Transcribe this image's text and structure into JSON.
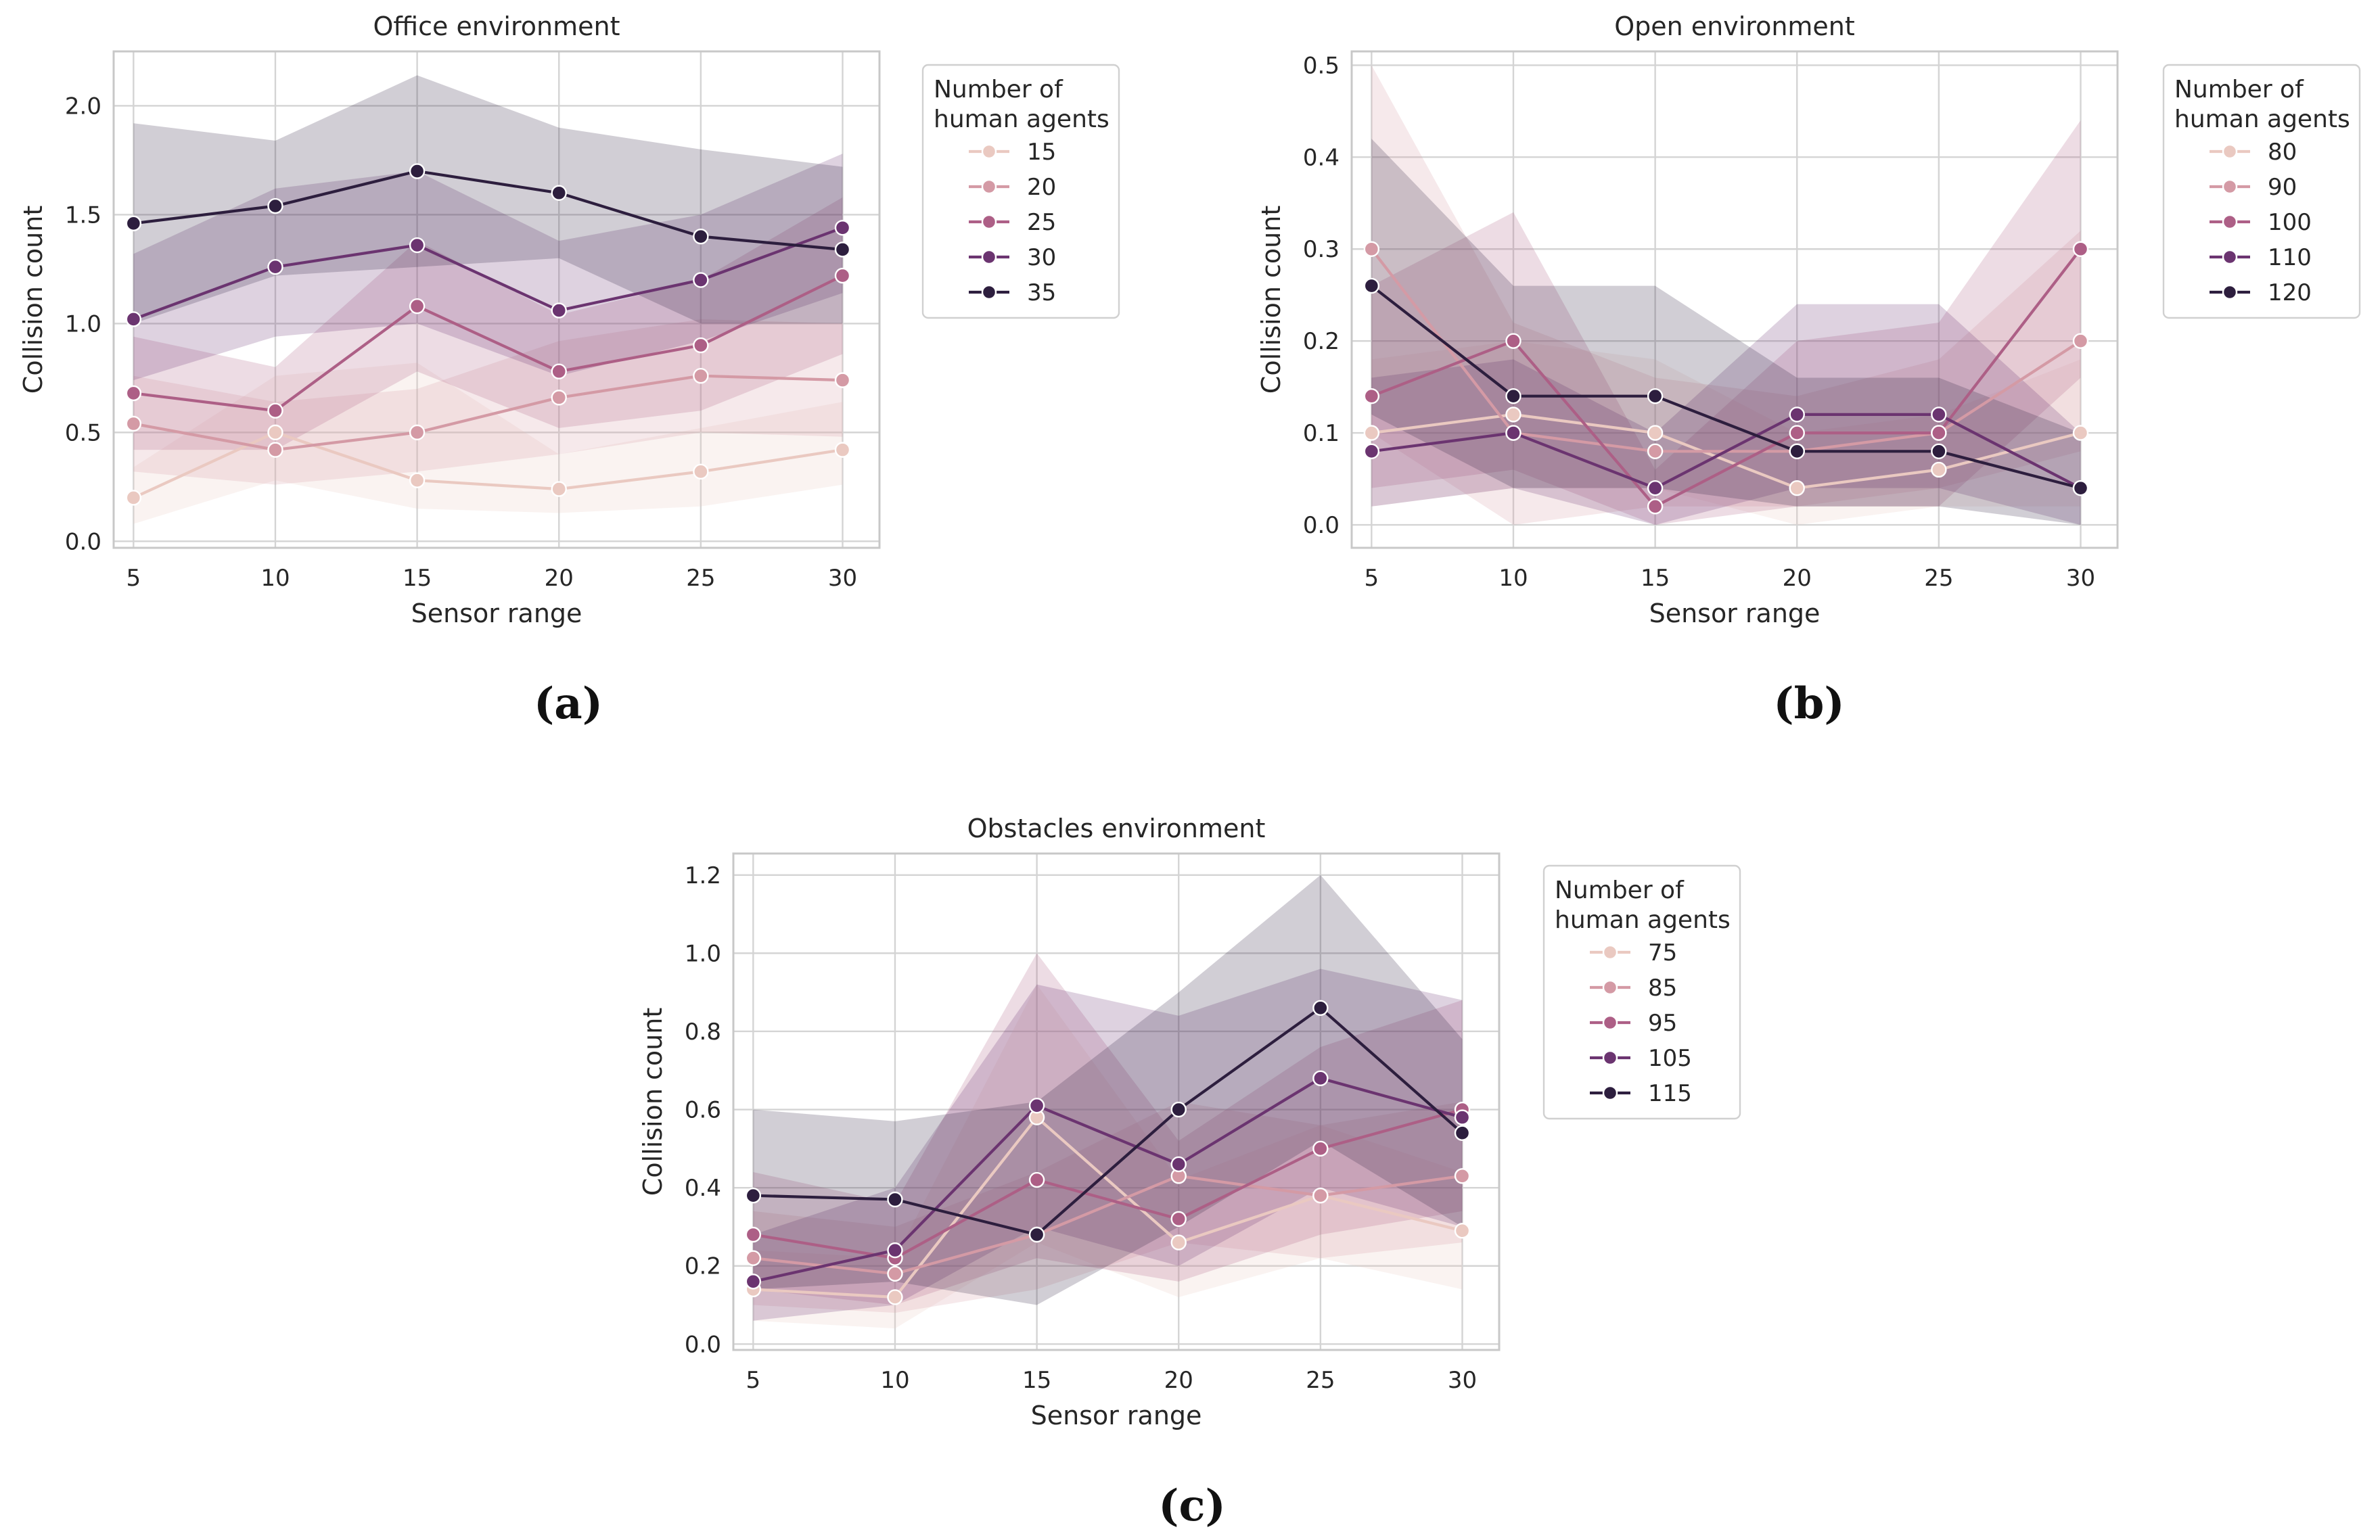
{
  "chart_data": [
    {
      "type": "line",
      "panel_label": "(a)",
      "title": "Office environment",
      "xlabel": "Sensor range",
      "ylabel": "Collision count",
      "x": [
        5,
        10,
        15,
        20,
        25,
        30
      ],
      "xticks": [
        "5",
        "10",
        "15",
        "20",
        "25",
        "30"
      ],
      "xlim": [
        4.3,
        31.3
      ],
      "ylim": [
        -0.03,
        2.25
      ],
      "yticks": [
        0.0,
        0.5,
        1.0,
        1.5,
        2.0
      ],
      "ytick_labels": [
        "0.0",
        "0.5",
        "1.0",
        "1.5",
        "2.0"
      ],
      "grid": true,
      "legend": {
        "title_line1": "Number of",
        "title_line2": "human agents",
        "placement": "outside right"
      },
      "series": [
        {
          "name": "15",
          "color": "#eac9c1",
          "values": [
            0.2,
            0.5,
            0.28,
            0.24,
            0.32,
            0.42
          ],
          "lower": [
            0.08,
            0.28,
            0.15,
            0.13,
            0.16,
            0.26
          ],
          "upper": [
            0.34,
            0.76,
            0.82,
            0.4,
            0.52,
            0.64
          ]
        },
        {
          "name": "20",
          "color": "#d49aa5",
          "values": [
            0.54,
            0.42,
            0.5,
            0.66,
            0.76,
            0.74
          ],
          "lower": [
            0.32,
            0.26,
            0.32,
            0.4,
            0.5,
            0.48
          ],
          "upper": [
            0.76,
            0.64,
            0.7,
            0.92,
            1.02,
            1.0
          ]
        },
        {
          "name": "25",
          "color": "#ad5f86",
          "values": [
            0.68,
            0.6,
            1.08,
            0.78,
            0.9,
            1.22
          ],
          "lower": [
            0.42,
            0.42,
            0.78,
            0.52,
            0.6,
            0.86
          ],
          "upper": [
            0.94,
            0.8,
            1.38,
            1.04,
            1.2,
            1.58
          ]
        },
        {
          "name": "30",
          "color": "#6b3470",
          "values": [
            1.02,
            1.26,
            1.36,
            1.06,
            1.2,
            1.44
          ],
          "lower": [
            0.74,
            0.94,
            1.0,
            0.76,
            0.92,
            1.14
          ],
          "upper": [
            1.32,
            1.62,
            1.7,
            1.38,
            1.5,
            1.78
          ]
        },
        {
          "name": "35",
          "color": "#2d1e3e",
          "values": [
            1.46,
            1.54,
            1.7,
            1.6,
            1.4,
            1.34
          ],
          "lower": [
            1.0,
            1.22,
            1.26,
            1.3,
            1.0,
            1.0
          ],
          "upper": [
            1.92,
            1.84,
            2.14,
            1.9,
            1.8,
            1.72
          ]
        }
      ]
    },
    {
      "type": "line",
      "panel_label": "(b)",
      "title": "Open environment",
      "xlabel": "Sensor range",
      "ylabel": "Collision count",
      "x": [
        5,
        10,
        15,
        20,
        25,
        30
      ],
      "xticks": [
        "5",
        "10",
        "15",
        "20",
        "25",
        "30"
      ],
      "xlim": [
        4.3,
        31.3
      ],
      "ylim": [
        -0.025,
        0.515
      ],
      "yticks": [
        0.0,
        0.1,
        0.2,
        0.3,
        0.4,
        0.5
      ],
      "ytick_labels": [
        "0.0",
        "0.1",
        "0.2",
        "0.3",
        "0.4",
        "0.5"
      ],
      "grid": true,
      "legend": {
        "title_line1": "Number of",
        "title_line2": "human agents",
        "placement": "outside right"
      },
      "series": [
        {
          "name": "80",
          "color": "#eac9c1",
          "values": [
            0.1,
            0.12,
            0.1,
            0.04,
            0.06,
            0.1
          ],
          "lower": [
            0.02,
            0.04,
            0.04,
            0.0,
            0.02,
            0.02
          ],
          "upper": [
            0.18,
            0.2,
            0.18,
            0.1,
            0.12,
            0.18
          ]
        },
        {
          "name": "90",
          "color": "#d49aa5",
          "values": [
            0.3,
            0.1,
            0.08,
            0.08,
            0.1,
            0.2
          ],
          "lower": [
            0.1,
            0.0,
            0.02,
            0.02,
            0.04,
            0.08
          ],
          "upper": [
            0.5,
            0.22,
            0.16,
            0.14,
            0.18,
            0.32
          ]
        },
        {
          "name": "100",
          "color": "#ad5f86",
          "values": [
            0.14,
            0.2,
            0.02,
            0.1,
            0.1,
            0.3
          ],
          "lower": [
            0.04,
            0.06,
            0.0,
            0.02,
            0.02,
            0.16
          ],
          "upper": [
            0.26,
            0.34,
            0.06,
            0.2,
            0.22,
            0.44
          ]
        },
        {
          "name": "110",
          "color": "#6b3470",
          "values": [
            0.08,
            0.1,
            0.04,
            0.12,
            0.12,
            0.04
          ],
          "lower": [
            0.02,
            0.04,
            0.0,
            0.04,
            0.04,
            0.0
          ],
          "upper": [
            0.16,
            0.18,
            0.1,
            0.24,
            0.24,
            0.1
          ]
        },
        {
          "name": "120",
          "color": "#2d1e3e",
          "values": [
            0.26,
            0.14,
            0.14,
            0.08,
            0.08,
            0.04
          ],
          "lower": [
            0.12,
            0.04,
            0.04,
            0.02,
            0.02,
            0.0
          ],
          "upper": [
            0.42,
            0.26,
            0.26,
            0.16,
            0.16,
            0.1
          ]
        }
      ]
    },
    {
      "type": "line",
      "panel_label": "(c)",
      "title": "Obstacles environment",
      "xlabel": "Sensor range",
      "ylabel": "Collision count",
      "x": [
        5,
        10,
        15,
        20,
        25,
        30
      ],
      "xticks": [
        "5",
        "10",
        "15",
        "20",
        "25",
        "30"
      ],
      "xlim": [
        4.3,
        31.3
      ],
      "ylim": [
        -0.015,
        1.255
      ],
      "yticks": [
        0.0,
        0.2,
        0.4,
        0.6,
        0.8,
        1.0,
        1.2
      ],
      "ytick_labels": [
        "0.0",
        "0.2",
        "0.4",
        "0.6",
        "0.8",
        "1.0",
        "1.2"
      ],
      "grid": true,
      "legend": {
        "title_line1": "Number of",
        "title_line2": "human agents",
        "placement": "outside right"
      },
      "series": [
        {
          "name": "75",
          "color": "#eac9c1",
          "values": [
            0.14,
            0.12,
            0.58,
            0.26,
            0.38,
            0.29
          ],
          "lower": [
            0.06,
            0.04,
            0.26,
            0.12,
            0.22,
            0.14
          ],
          "upper": [
            0.24,
            0.22,
            0.92,
            0.42,
            0.56,
            0.44
          ]
        },
        {
          "name": "85",
          "color": "#d49aa5",
          "values": [
            0.22,
            0.18,
            0.28,
            0.43,
            0.38,
            0.43
          ],
          "lower": [
            0.1,
            0.08,
            0.14,
            0.26,
            0.22,
            0.26
          ],
          "upper": [
            0.34,
            0.3,
            0.44,
            0.62,
            0.56,
            0.62
          ]
        },
        {
          "name": "95",
          "color": "#ad5f86",
          "values": [
            0.28,
            0.22,
            0.42,
            0.32,
            0.5,
            0.6
          ],
          "lower": [
            0.14,
            0.1,
            0.22,
            0.16,
            0.28,
            0.34
          ],
          "upper": [
            0.44,
            0.36,
            1.0,
            0.52,
            0.76,
            0.88
          ]
        },
        {
          "name": "105",
          "color": "#6b3470",
          "values": [
            0.16,
            0.24,
            0.61,
            0.46,
            0.68,
            0.58
          ],
          "lower": [
            0.06,
            0.1,
            0.3,
            0.2,
            0.4,
            0.3
          ],
          "upper": [
            0.28,
            0.4,
            0.92,
            0.84,
            0.96,
            0.88
          ]
        },
        {
          "name": "115",
          "color": "#2d1e3e",
          "values": [
            0.38,
            0.37,
            0.28,
            0.6,
            0.86,
            0.54
          ],
          "lower": [
            0.14,
            0.16,
            0.1,
            0.3,
            0.52,
            0.3
          ],
          "upper": [
            0.6,
            0.57,
            0.62,
            0.9,
            1.2,
            0.78
          ]
        }
      ]
    }
  ]
}
